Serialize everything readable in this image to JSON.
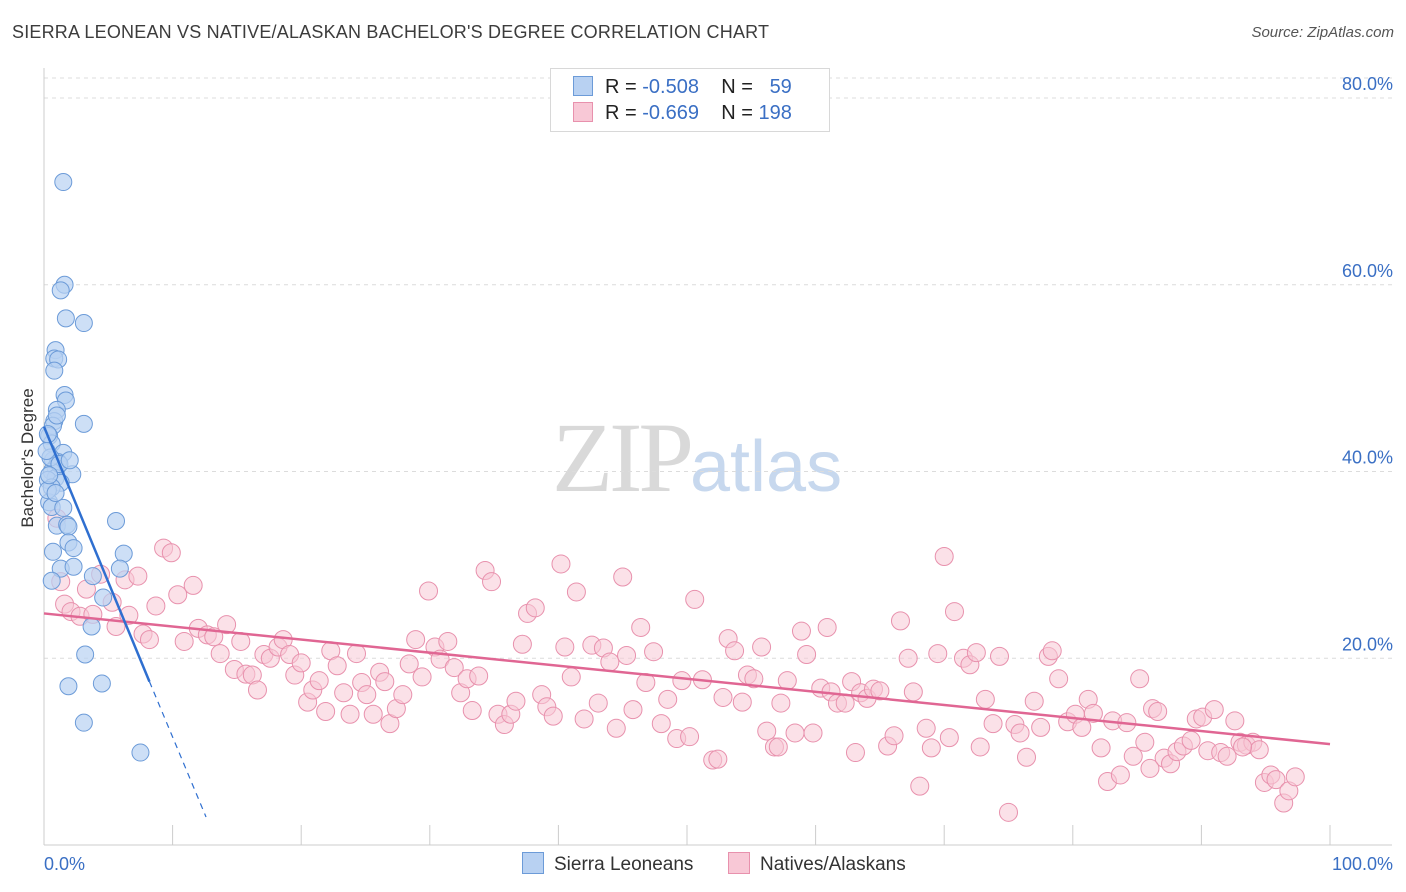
{
  "title": "SIERRA LEONEAN VS NATIVE/ALASKAN BACHELOR'S DEGREE CORRELATION CHART",
  "source": "Source: ZipAtlas.com",
  "watermark": {
    "zip": "ZIP",
    "atlas": "atlas"
  },
  "legend": {
    "rows": [
      {
        "r_label": "R =",
        "r_value": "-0.508",
        "n_label": "N =",
        "n_value": "59"
      },
      {
        "r_label": "R =",
        "r_value": "-0.669",
        "n_label": "N =",
        "n_value": "198"
      }
    ]
  },
  "colors": {
    "blue_fill": "#b8d1f2",
    "blue_stroke": "#6c9bd8",
    "blue_line": "#2f6fd0",
    "pink_fill": "#f8c8d6",
    "pink_stroke": "#e891ad",
    "pink_line": "#e06693",
    "axis_label": "#3a6fc4"
  },
  "chart_data": {
    "type": "scatter",
    "title": "SIERRA LEONEAN VS NATIVE/ALASKAN BACHELOR'S DEGREE CORRELATION CHART",
    "xlabel": "",
    "ylabel": "Bachelor's Degree",
    "xlim": [
      0,
      100
    ],
    "ylim": [
      0,
      83
    ],
    "x_tick_labels": [
      "0.0%",
      "100.0%"
    ],
    "y_ticks": [
      20,
      40,
      60,
      80
    ],
    "y_tick_labels": [
      "20.0%",
      "40.0%",
      "60.0%",
      "80.0%"
    ],
    "series": [
      {
        "name": "Sierra Leoneans",
        "r": -0.508,
        "n": 59,
        "trend": {
          "x0": 0,
          "y0": 44.8,
          "x1": 8.2,
          "y1": 17.5,
          "dash_to_x": 12.6,
          "dash_to_y": 3.0
        },
        "points": [
          [
            1.5,
            71.0
          ],
          [
            1.6,
            60.0
          ],
          [
            1.3,
            59.4
          ],
          [
            1.7,
            56.4
          ],
          [
            3.1,
            55.9
          ],
          [
            0.9,
            53.0
          ],
          [
            0.8,
            52.1
          ],
          [
            1.1,
            52.0
          ],
          [
            0.8,
            50.8
          ],
          [
            1.6,
            48.2
          ],
          [
            1.7,
            47.6
          ],
          [
            1.0,
            46.6
          ],
          [
            0.8,
            45.4
          ],
          [
            0.7,
            44.9
          ],
          [
            3.1,
            45.1
          ],
          [
            0.4,
            43.8
          ],
          [
            0.6,
            43.0
          ],
          [
            1.5,
            42.0
          ],
          [
            0.7,
            41.2
          ],
          [
            1.1,
            41.0
          ],
          [
            0.9,
            40.4
          ],
          [
            0.6,
            40.0
          ],
          [
            2.2,
            39.7
          ],
          [
            0.9,
            39.3
          ],
          [
            0.3,
            39.1
          ],
          [
            1.3,
            38.8
          ],
          [
            0.6,
            38.3
          ],
          [
            0.4,
            36.7
          ],
          [
            0.6,
            36.2
          ],
          [
            1.5,
            36.1
          ],
          [
            1.0,
            34.2
          ],
          [
            1.8,
            34.3
          ],
          [
            1.9,
            34.1
          ],
          [
            5.6,
            34.7
          ],
          [
            1.9,
            32.4
          ],
          [
            2.3,
            31.8
          ],
          [
            0.7,
            31.4
          ],
          [
            6.2,
            31.2
          ],
          [
            1.3,
            29.6
          ],
          [
            2.3,
            29.8
          ],
          [
            5.9,
            29.6
          ],
          [
            3.8,
            28.8
          ],
          [
            0.6,
            28.3
          ],
          [
            4.6,
            26.5
          ],
          [
            3.7,
            23.4
          ],
          [
            3.2,
            20.4
          ],
          [
            1.9,
            17.0
          ],
          [
            4.5,
            17.3
          ],
          [
            3.1,
            13.1
          ],
          [
            7.5,
            9.9
          ],
          [
            0.3,
            38.0
          ],
          [
            0.5,
            41.5
          ],
          [
            0.2,
            42.2
          ],
          [
            1.2,
            40.8
          ],
          [
            0.9,
            37.7
          ],
          [
            2.0,
            41.2
          ],
          [
            0.3,
            44.0
          ],
          [
            1.0,
            46.0
          ],
          [
            0.4,
            39.6
          ]
        ]
      },
      {
        "name": "Natives/Alaskans",
        "r": -0.669,
        "n": 198,
        "trend": {
          "x0": 0,
          "y0": 24.8,
          "x1": 100,
          "y1": 10.8
        },
        "points": [
          [
            1.0,
            35.0
          ],
          [
            1.3,
            28.2
          ],
          [
            1.6,
            25.8
          ],
          [
            2.1,
            25.0
          ],
          [
            2.8,
            24.5
          ],
          [
            3.3,
            27.4
          ],
          [
            3.8,
            24.7
          ],
          [
            4.4,
            29.0
          ],
          [
            5.3,
            26.0
          ],
          [
            5.6,
            23.4
          ],
          [
            6.3,
            28.4
          ],
          [
            6.6,
            24.6
          ],
          [
            7.3,
            28.8
          ],
          [
            7.7,
            22.6
          ],
          [
            8.2,
            22.0
          ],
          [
            8.7,
            25.6
          ],
          [
            9.3,
            31.8
          ],
          [
            9.9,
            31.3
          ],
          [
            10.4,
            26.8
          ],
          [
            10.9,
            21.8
          ],
          [
            11.6,
            27.8
          ],
          [
            12.0,
            23.2
          ],
          [
            12.7,
            22.5
          ],
          [
            13.2,
            22.3
          ],
          [
            13.7,
            20.5
          ],
          [
            14.2,
            23.6
          ],
          [
            14.8,
            18.8
          ],
          [
            15.3,
            21.8
          ],
          [
            15.7,
            18.3
          ],
          [
            16.2,
            18.2
          ],
          [
            16.6,
            16.6
          ],
          [
            17.1,
            20.4
          ],
          [
            17.6,
            20.0
          ],
          [
            18.2,
            21.2
          ],
          [
            18.6,
            22.0
          ],
          [
            19.1,
            20.4
          ],
          [
            19.5,
            18.2
          ],
          [
            20.0,
            19.5
          ],
          [
            20.5,
            15.3
          ],
          [
            20.9,
            16.6
          ],
          [
            21.4,
            17.6
          ],
          [
            21.9,
            14.3
          ],
          [
            22.3,
            20.8
          ],
          [
            22.8,
            19.2
          ],
          [
            23.3,
            16.3
          ],
          [
            23.8,
            14.0
          ],
          [
            24.3,
            20.5
          ],
          [
            24.7,
            17.4
          ],
          [
            25.1,
            16.1
          ],
          [
            25.6,
            14.0
          ],
          [
            26.1,
            18.5
          ],
          [
            26.5,
            17.5
          ],
          [
            26.9,
            13.0
          ],
          [
            27.4,
            14.6
          ],
          [
            27.9,
            16.1
          ],
          [
            28.4,
            19.4
          ],
          [
            28.9,
            22.0
          ],
          [
            29.4,
            18.0
          ],
          [
            29.9,
            27.2
          ],
          [
            30.4,
            21.2
          ],
          [
            30.8,
            19.9
          ],
          [
            31.4,
            21.8
          ],
          [
            31.9,
            19.0
          ],
          [
            32.4,
            16.3
          ],
          [
            32.9,
            17.8
          ],
          [
            33.3,
            14.4
          ],
          [
            33.8,
            18.1
          ],
          [
            34.3,
            29.4
          ],
          [
            34.8,
            28.2
          ],
          [
            35.3,
            14.0
          ],
          [
            35.8,
            12.9
          ],
          [
            36.3,
            14.0
          ],
          [
            36.7,
            15.4
          ],
          [
            37.2,
            21.5
          ],
          [
            37.6,
            24.8
          ],
          [
            38.2,
            25.4
          ],
          [
            38.7,
            16.1
          ],
          [
            39.1,
            14.8
          ],
          [
            39.6,
            13.8
          ],
          [
            40.2,
            30.1
          ],
          [
            40.5,
            21.2
          ],
          [
            41.0,
            18.0
          ],
          [
            41.4,
            27.1
          ],
          [
            42.0,
            13.5
          ],
          [
            42.6,
            21.4
          ],
          [
            43.1,
            15.2
          ],
          [
            43.5,
            21.1
          ],
          [
            44.0,
            19.6
          ],
          [
            44.5,
            12.5
          ],
          [
            45.0,
            28.7
          ],
          [
            45.3,
            20.3
          ],
          [
            45.8,
            14.5
          ],
          [
            46.4,
            23.3
          ],
          [
            46.8,
            17.4
          ],
          [
            47.4,
            20.7
          ],
          [
            48.0,
            13.0
          ],
          [
            48.5,
            15.6
          ],
          [
            49.2,
            11.4
          ],
          [
            49.6,
            17.6
          ],
          [
            50.2,
            11.6
          ],
          [
            50.6,
            26.3
          ],
          [
            51.2,
            17.7
          ],
          [
            52.0,
            9.1
          ],
          [
            52.4,
            9.2
          ],
          [
            52.8,
            15.8
          ],
          [
            53.2,
            22.1
          ],
          [
            53.7,
            20.8
          ],
          [
            54.3,
            15.3
          ],
          [
            54.7,
            18.2
          ],
          [
            55.2,
            17.8
          ],
          [
            55.8,
            21.2
          ],
          [
            56.2,
            12.2
          ],
          [
            56.8,
            10.5
          ],
          [
            57.3,
            15.2
          ],
          [
            57.8,
            17.6
          ],
          [
            58.4,
            12.0
          ],
          [
            58.9,
            22.9
          ],
          [
            59.3,
            20.4
          ],
          [
            59.8,
            12.0
          ],
          [
            60.4,
            16.8
          ],
          [
            60.9,
            23.3
          ],
          [
            61.2,
            16.4
          ],
          [
            61.7,
            15.2
          ],
          [
            62.3,
            15.2
          ],
          [
            62.8,
            17.5
          ],
          [
            63.1,
            9.9
          ],
          [
            63.5,
            16.3
          ],
          [
            64.0,
            15.7
          ],
          [
            64.5,
            16.7
          ],
          [
            65.0,
            16.5
          ],
          [
            65.6,
            10.6
          ],
          [
            66.1,
            11.7
          ],
          [
            66.6,
            24.0
          ],
          [
            67.2,
            20.0
          ],
          [
            67.6,
            16.4
          ],
          [
            68.1,
            6.3
          ],
          [
            68.6,
            12.5
          ],
          [
            69.0,
            10.4
          ],
          [
            69.5,
            20.5
          ],
          [
            70.0,
            30.9
          ],
          [
            70.4,
            11.5
          ],
          [
            70.8,
            25.0
          ],
          [
            71.5,
            20.0
          ],
          [
            72.0,
            19.3
          ],
          [
            72.5,
            20.6
          ],
          [
            72.8,
            10.5
          ],
          [
            73.2,
            15.6
          ],
          [
            73.8,
            13.0
          ],
          [
            74.3,
            20.2
          ],
          [
            75.0,
            3.5
          ],
          [
            75.5,
            12.9
          ],
          [
            75.9,
            12.0
          ],
          [
            76.4,
            9.4
          ],
          [
            77.0,
            15.4
          ],
          [
            77.5,
            12.6
          ],
          [
            78.1,
            20.2
          ],
          [
            78.4,
            20.8
          ],
          [
            78.9,
            17.8
          ],
          [
            79.6,
            13.2
          ],
          [
            80.2,
            14.0
          ],
          [
            80.7,
            12.6
          ],
          [
            81.2,
            15.6
          ],
          [
            81.6,
            14.1
          ],
          [
            82.2,
            10.4
          ],
          [
            82.7,
            6.8
          ],
          [
            83.1,
            13.3
          ],
          [
            83.7,
            7.5
          ],
          [
            84.2,
            13.1
          ],
          [
            84.7,
            9.5
          ],
          [
            85.2,
            17.8
          ],
          [
            85.6,
            11.0
          ],
          [
            86.2,
            14.6
          ],
          [
            86.6,
            14.3
          ],
          [
            87.1,
            9.3
          ],
          [
            87.6,
            8.7
          ],
          [
            88.1,
            10.0
          ],
          [
            88.6,
            10.6
          ],
          [
            89.2,
            11.2
          ],
          [
            89.6,
            13.5
          ],
          [
            90.1,
            13.7
          ],
          [
            90.5,
            10.1
          ],
          [
            91.0,
            14.5
          ],
          [
            91.5,
            9.9
          ],
          [
            92.0,
            9.5
          ],
          [
            92.6,
            13.3
          ],
          [
            93.0,
            11.0
          ],
          [
            93.5,
            10.7
          ],
          [
            94.0,
            11.0
          ],
          [
            94.5,
            10.2
          ],
          [
            94.9,
            6.7
          ],
          [
            95.4,
            7.5
          ],
          [
            95.8,
            7.0
          ],
          [
            96.4,
            4.5
          ],
          [
            96.8,
            5.8
          ],
          [
            97.3,
            7.3
          ],
          [
            93.2,
            10.5
          ],
          [
            86.0,
            8.2
          ],
          [
            57.1,
            10.5
          ]
        ]
      }
    ]
  }
}
